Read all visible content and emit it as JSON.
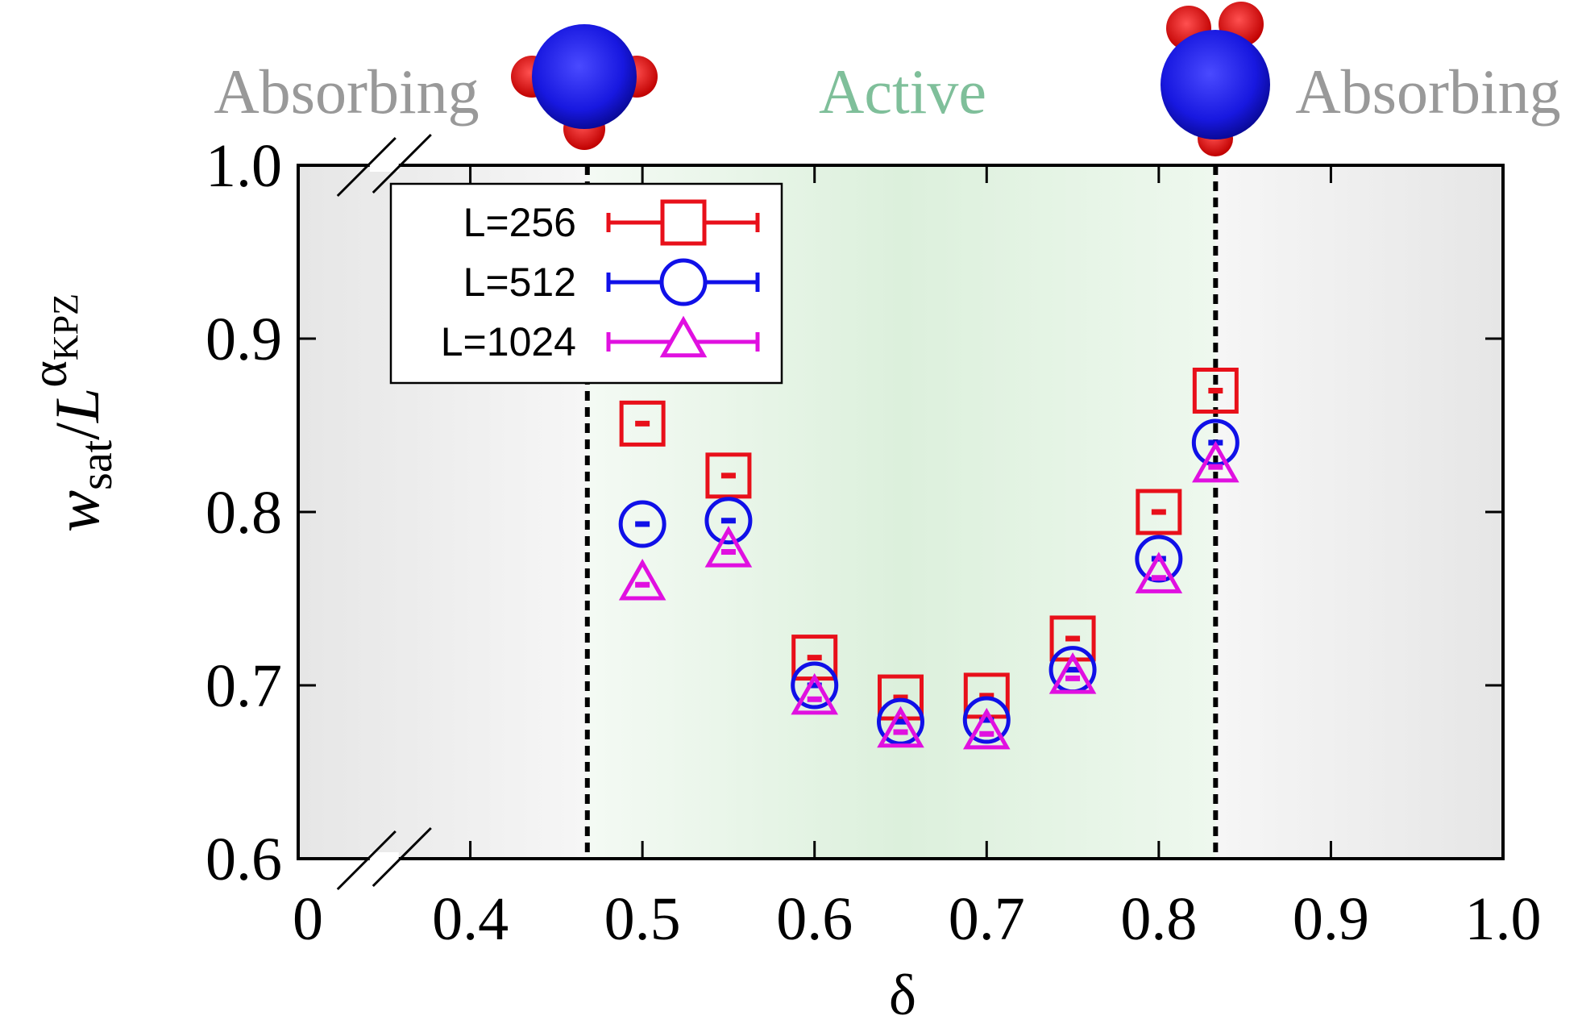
{
  "chart_data": {
    "type": "scatter",
    "xlabel": "δ",
    "ylabel": {
      "base": "w",
      "base_sub": "sat",
      "slash": "/",
      "power_base": "L",
      "exponent": "α",
      "exponent_sub": "KPZ"
    },
    "xlim": [
      0.3,
      1.0
    ],
    "ylim": [
      0.6,
      1.0
    ],
    "x_ticks": [
      {
        "value": 0.4,
        "label": "0.4"
      },
      {
        "value": 0.5,
        "label": "0.5"
      },
      {
        "value": 0.6,
        "label": "0.6"
      },
      {
        "value": 0.7,
        "label": "0.7"
      },
      {
        "value": 0.8,
        "label": "0.8"
      },
      {
        "value": 0.9,
        "label": "0.9"
      },
      {
        "value": 1.0,
        "label": "1.0"
      }
    ],
    "x_zero_label": "0",
    "y_ticks": [
      {
        "value": 0.6,
        "label": "0.6"
      },
      {
        "value": 0.7,
        "label": "0.7"
      },
      {
        "value": 0.8,
        "label": "0.8"
      },
      {
        "value": 0.9,
        "label": "0.9"
      },
      {
        "value": 1.0,
        "label": "1.0"
      }
    ],
    "axis_break_position": 0.35,
    "transitions": [
      0.468,
      0.833
    ],
    "regions": [
      {
        "label": "Absorbing",
        "color": "#999999"
      },
      {
        "label": "Active",
        "color": "#7fbf9a"
      },
      {
        "label": "Absorbing",
        "color": "#999999"
      }
    ],
    "legend_position": "top-left",
    "series": [
      {
        "name": "L=256",
        "marker": "square",
        "color": "#e8101a",
        "x": [
          0.5,
          0.55,
          0.6,
          0.65,
          0.7,
          0.75,
          0.8,
          0.833
        ],
        "y": [
          0.851,
          0.821,
          0.716,
          0.693,
          0.694,
          0.727,
          0.8,
          0.87
        ]
      },
      {
        "name": "L=512",
        "marker": "circle",
        "color": "#1010e8",
        "x": [
          0.5,
          0.55,
          0.6,
          0.65,
          0.7,
          0.75,
          0.8,
          0.833
        ],
        "y": [
          0.793,
          0.795,
          0.7,
          0.679,
          0.68,
          0.709,
          0.773,
          0.84
        ]
      },
      {
        "name": "L=1024",
        "marker": "triangle",
        "color": "#e010e0",
        "x": [
          0.5,
          0.55,
          0.6,
          0.65,
          0.7,
          0.75,
          0.8,
          0.833
        ],
        "y": [
          0.758,
          0.777,
          0.692,
          0.673,
          0.672,
          0.704,
          0.762,
          0.826
        ]
      }
    ]
  }
}
